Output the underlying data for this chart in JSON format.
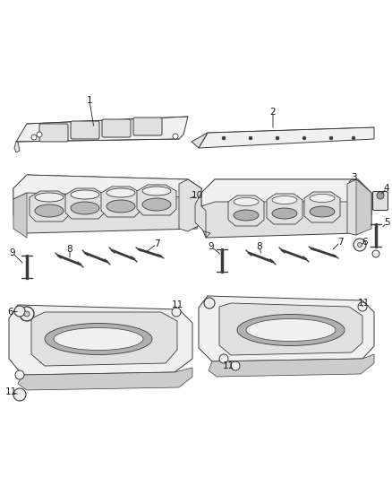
{
  "bg_color": "#ffffff",
  "line_color": "#3a3a3a",
  "fill_light": "#f0f0f0",
  "fill_mid": "#e0e0e0",
  "fill_dark": "#cccccc",
  "label_color": "#1a1a1a",
  "fig_width": 4.38,
  "fig_height": 5.33,
  "dpi": 100
}
